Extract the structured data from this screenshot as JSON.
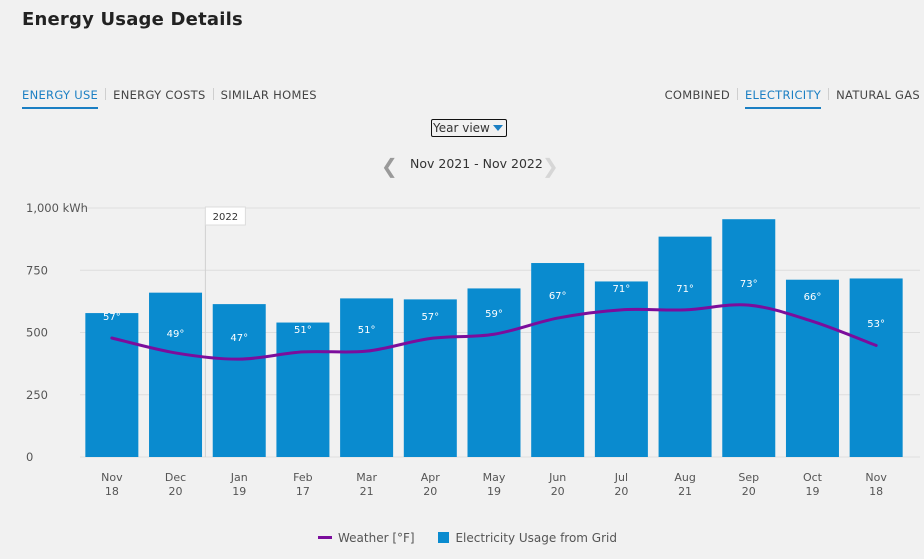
{
  "page": {
    "title": "Energy Usage Details"
  },
  "tabs_left": [
    "ENERGY USE",
    "ENERGY COSTS",
    "SIMILAR HOMES"
  ],
  "tabs_right": [
    "COMBINED",
    "ELECTRICITY",
    "NATURAL GAS"
  ],
  "view_select": {
    "value": "Year view"
  },
  "date_nav": {
    "range": "Nov 2021 - Nov 2022"
  },
  "colors": {
    "bar": "#0a8bcf",
    "weather": "#7b0d9c",
    "accent": "#1b7fc3"
  },
  "chart_data": {
    "type": "bar",
    "title": "",
    "ylabel": "kWh",
    "ylim": [
      0,
      1000
    ],
    "yticks": [
      0,
      250,
      500,
      750,
      1000
    ],
    "ytick_labels": [
      "0",
      "250",
      "500",
      "750",
      "1,000 kWh"
    ],
    "year_marker": "2022",
    "categories": [
      {
        "month": "Nov",
        "day": "18"
      },
      {
        "month": "Dec",
        "day": "20"
      },
      {
        "month": "Jan",
        "day": "19"
      },
      {
        "month": "Feb",
        "day": "17"
      },
      {
        "month": "Mar",
        "day": "21"
      },
      {
        "month": "Apr",
        "day": "20"
      },
      {
        "month": "May",
        "day": "19"
      },
      {
        "month": "Jun",
        "day": "20"
      },
      {
        "month": "Jul",
        "day": "20"
      },
      {
        "month": "Aug",
        "day": "21"
      },
      {
        "month": "Sep",
        "day": "20"
      },
      {
        "month": "Oct",
        "day": "19"
      },
      {
        "month": "Nov",
        "day": "18"
      }
    ],
    "series": [
      {
        "name": "Electricity Usage from Grid",
        "type": "bar",
        "values": [
          578,
          660,
          614,
          540,
          637,
          633,
          677,
          779,
          705,
          885,
          955,
          712,
          717
        ]
      },
      {
        "name": "Weather [°F]",
        "type": "line",
        "values": [
          57,
          49,
          47,
          51,
          51,
          57,
          59,
          67,
          71,
          71,
          73,
          66,
          53
        ],
        "labels": [
          "57°",
          "49°",
          "47°",
          "51°",
          "51°",
          "57°",
          "59°",
          "67°",
          "71°",
          "71°",
          "73°",
          "66°",
          "53°"
        ],
        "line_kwh": [
          478,
          418,
          393,
          422,
          425,
          476,
          493,
          558,
          591,
          591,
          610,
          545,
          448
        ]
      }
    ],
    "legend": [
      "Weather [°F]",
      "Electricity Usage from Grid"
    ]
  }
}
